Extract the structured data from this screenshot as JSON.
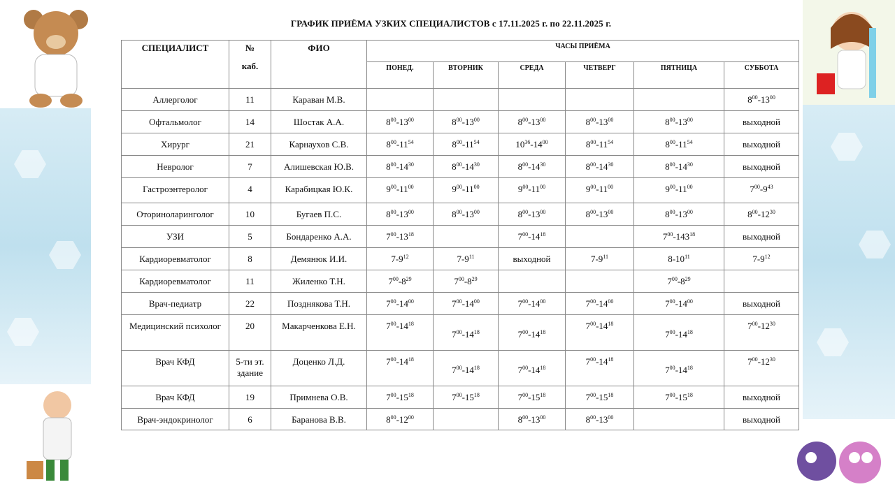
{
  "title": "ГРАФИК ПРИЁМА УЗКИХ СПЕЦИАЛИСТОВ    с  17.11.2025 г. по 22.11.2025 г.",
  "headers": {
    "specialist": "СПЕЦИАЛИСТ",
    "room_line1": "№",
    "room_line2": "каб.",
    "name": "ФИО",
    "hours": "ЧАСЫ ПРИЁМА",
    "days": [
      "ПОНЕД.",
      "ВТОРНИК",
      "СРЕДА",
      "ЧЕТВЕРГ",
      "ПЯТНИЦА",
      "СУББОТА"
    ]
  },
  "rows": [
    {
      "specialist": "Аллерголог",
      "room": "11",
      "name": "Караван М.В.",
      "days": [
        [],
        [],
        [],
        [],
        [],
        [
          [
            "8",
            "00"
          ],
          [
            "-13",
            "00"
          ]
        ]
      ]
    },
    {
      "specialist": "Офтальмолог",
      "room": "14",
      "name": "Шостак А.А.",
      "days": [
        [
          [
            "8",
            "00"
          ],
          [
            "-13",
            "00"
          ]
        ],
        [
          [
            "8",
            "00"
          ],
          [
            "-13",
            "00"
          ]
        ],
        [
          [
            "8",
            "00"
          ],
          [
            "-13",
            "00"
          ]
        ],
        [
          [
            "8",
            "00"
          ],
          [
            "-13",
            "00"
          ]
        ],
        [
          [
            "8",
            "00"
          ],
          [
            "-13",
            "00"
          ]
        ],
        [
          [
            "выходной",
            ""
          ]
        ]
      ]
    },
    {
      "specialist": "Хирург",
      "room": "21",
      "name": "Карнаухов С.В.",
      "days": [
        [
          [
            "8",
            "00"
          ],
          [
            "-11",
            "54"
          ]
        ],
        [
          [
            "8",
            "00"
          ],
          [
            "-11",
            "54"
          ]
        ],
        [
          [
            "10",
            "36"
          ],
          [
            "-14",
            "00"
          ]
        ],
        [
          [
            "8",
            "00"
          ],
          [
            "-11",
            "54"
          ]
        ],
        [
          [
            "8",
            "00"
          ],
          [
            "-11",
            "54"
          ]
        ],
        [
          [
            "выходной",
            ""
          ]
        ]
      ]
    },
    {
      "specialist": "Невролог",
      "room": "7",
      "name": "Алишевская Ю.В.",
      "days": [
        [
          [
            "8",
            "00"
          ],
          [
            "-14",
            "30"
          ]
        ],
        [
          [
            "8",
            "00"
          ],
          [
            "-14",
            "30"
          ]
        ],
        [
          [
            "8",
            "00"
          ],
          [
            "-14",
            "30"
          ]
        ],
        [
          [
            "8",
            "00"
          ],
          [
            "-14",
            "30"
          ]
        ],
        [
          [
            "8",
            "00"
          ],
          [
            "-14",
            "30"
          ]
        ],
        [
          [
            "выходной",
            ""
          ]
        ]
      ]
    },
    {
      "specialist": "Гастроэнтеролог",
      "room": "4",
      "name": "Карабицкая Ю.К.",
      "days": [
        [
          [
            "9",
            "00"
          ],
          [
            "-11",
            "00"
          ]
        ],
        [
          [
            "9",
            "00"
          ],
          [
            "-11",
            "00"
          ]
        ],
        [
          [
            "9",
            "00"
          ],
          [
            "-11",
            "00"
          ]
        ],
        [
          [
            "9",
            "00"
          ],
          [
            "-11",
            "00"
          ]
        ],
        [
          [
            "9",
            "00"
          ],
          [
            "-11",
            "00"
          ]
        ],
        [
          [
            "7",
            "00"
          ],
          [
            "-9",
            "43"
          ]
        ]
      ]
    },
    {
      "specialist": "Оториноларинголог",
      "room": "10",
      "name": "Бугаев П.С.",
      "days": [
        [
          [
            "8",
            "00"
          ],
          [
            "-13",
            "00"
          ]
        ],
        [
          [
            "8",
            "00"
          ],
          [
            "-13",
            "00"
          ]
        ],
        [
          [
            "8",
            "00"
          ],
          [
            "-13",
            "00"
          ]
        ],
        [
          [
            "8",
            "00"
          ],
          [
            "-13",
            "00"
          ]
        ],
        [
          [
            "8",
            "00"
          ],
          [
            "-13",
            "00"
          ]
        ],
        [
          [
            "8",
            "00"
          ],
          [
            "-12",
            "30"
          ]
        ]
      ]
    },
    {
      "specialist": "УЗИ",
      "room": "5",
      "name": "Бондаренко А.А.",
      "days": [
        [
          [
            "7",
            "00"
          ],
          [
            "-13",
            "18"
          ]
        ],
        [],
        [
          [
            "7",
            "00"
          ],
          [
            "-14",
            "18"
          ]
        ],
        [],
        [
          [
            "7",
            "00"
          ],
          [
            "-143",
            "18"
          ]
        ],
        [
          [
            "выходной",
            ""
          ]
        ]
      ]
    },
    {
      "specialist": "Кардиоревматолог",
      "room": "8",
      "name": "Демянюк И.И.",
      "days": [
        [
          [
            "7-9",
            "12"
          ]
        ],
        [
          [
            "7-9",
            "11"
          ]
        ],
        [
          [
            "выходной",
            ""
          ]
        ],
        [
          [
            "7-9",
            "11"
          ]
        ],
        [
          [
            "8-10",
            "11"
          ]
        ],
        [
          [
            "7-9",
            "12"
          ]
        ]
      ]
    },
    {
      "specialist": "Кардиоревматолог",
      "room": "11",
      "name": "Жиленко Т.Н.",
      "days": [
        [
          [
            "7",
            "00"
          ],
          [
            "-8",
            "29"
          ]
        ],
        [
          [
            "7",
            "00"
          ],
          [
            "-8",
            "29"
          ]
        ],
        [],
        [],
        [
          [
            "7",
            "00"
          ],
          [
            "-8",
            "29"
          ]
        ],
        []
      ]
    },
    {
      "specialist": "Врач-педиатр",
      "room": "22",
      "name": "Позднякова Т.Н.",
      "days": [
        [
          [
            "7",
            "00"
          ],
          [
            "-14",
            "00"
          ]
        ],
        [
          [
            "7",
            "00"
          ],
          [
            "-14",
            "00"
          ]
        ],
        [
          [
            "7",
            "00"
          ],
          [
            "-14",
            "00"
          ]
        ],
        [
          [
            "7",
            "00"
          ],
          [
            "-14",
            "00"
          ]
        ],
        [
          [
            "7",
            "00"
          ],
          [
            "-14",
            "00"
          ]
        ],
        [
          [
            "выходной",
            ""
          ]
        ]
      ]
    },
    {
      "specialist": "Медицинский психолог",
      "room": "20",
      "name": "Макарченкова Е.Н.",
      "days": [
        [
          [
            "7",
            "00"
          ],
          [
            "-14",
            "18"
          ]
        ],
        [
          [
            "7",
            "00"
          ],
          [
            "-14",
            "18"
          ]
        ],
        [
          [
            "7",
            "00"
          ],
          [
            "-14",
            "18"
          ]
        ],
        [
          [
            "7",
            "00"
          ],
          [
            "-14",
            "18"
          ]
        ],
        [
          [
            "7",
            "00"
          ],
          [
            "-14",
            "18"
          ]
        ],
        [
          [
            "7",
            "00"
          ],
          [
            "-12",
            "30"
          ]
        ]
      ]
    },
    {
      "specialist": "Врач КФД",
      "room": "5-ти эт. здание",
      "name": "Доценко Л.Д.",
      "days": [
        [
          [
            "7",
            "00"
          ],
          [
            "-14",
            "18"
          ]
        ],
        [
          [
            "7",
            "00"
          ],
          [
            "-14",
            "18"
          ]
        ],
        [
          [
            "7",
            "00"
          ],
          [
            "-14",
            "18"
          ]
        ],
        [
          [
            "7",
            "00"
          ],
          [
            "-14",
            "18"
          ]
        ],
        [
          [
            "7",
            "00"
          ],
          [
            "-14",
            "18"
          ]
        ],
        [
          [
            "7",
            "00"
          ],
          [
            "-12",
            "30"
          ]
        ]
      ]
    },
    {
      "specialist": "Врач КФД",
      "room": "19",
      "name": "Примнева О.В.",
      "days": [
        [
          [
            "7",
            "00"
          ],
          [
            "-15",
            "18"
          ]
        ],
        [
          [
            "7",
            "00"
          ],
          [
            "-15",
            "18"
          ]
        ],
        [
          [
            "7",
            "00"
          ],
          [
            "-15",
            "18"
          ]
        ],
        [
          [
            "7",
            "00"
          ],
          [
            "-15",
            "18"
          ]
        ],
        [
          [
            "7",
            "00"
          ],
          [
            "-15",
            "18"
          ]
        ],
        [
          [
            "выходной",
            ""
          ]
        ]
      ]
    },
    {
      "specialist": "Врач-эндокринолог",
      "room": "6",
      "name": "Баранова В.В.",
      "days": [
        [
          [
            "8",
            "00"
          ],
          [
            "-12",
            "00"
          ]
        ],
        [],
        [
          [
            "8",
            "00"
          ],
          [
            "-13",
            "00"
          ]
        ],
        [
          [
            "8",
            "00"
          ],
          [
            "-13",
            "00"
          ]
        ],
        [],
        [
          [
            "выходной",
            ""
          ]
        ]
      ]
    }
  ]
}
